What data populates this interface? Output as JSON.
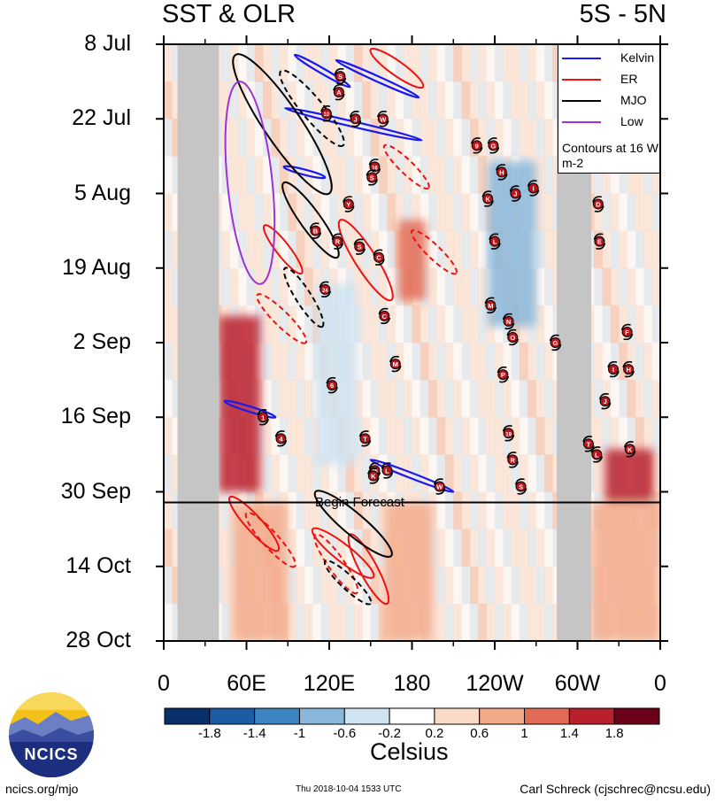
{
  "header": {
    "title_left": "SST & OLR",
    "title_right": "5S - 5N"
  },
  "colorbar": {
    "tick_labels": [
      "-1.8",
      "-1.4",
      "-1",
      "-0.6",
      "-0.2",
      "0.2",
      "0.6",
      "1",
      "1.4",
      "1.8"
    ],
    "unit": "Celsius",
    "colors": [
      "#08306b",
      "#1c5ba6",
      "#3d84c3",
      "#89b7da",
      "#cfe3f1",
      "#ffffff",
      "#fbdac8",
      "#f3aa89",
      "#e26b55",
      "#b8202e",
      "#6b0019"
    ]
  },
  "legend": {
    "items": [
      {
        "label": "Kelvin",
        "color": "#1a1aee"
      },
      {
        "label": "ER",
        "color": "#ee1111"
      },
      {
        "label": "MJO",
        "color": "#000000"
      },
      {
        "label": "Low",
        "color": "#a030d8"
      }
    ],
    "note": "Contours at 16 W m-2"
  },
  "forecast_label": "Begin Forecast",
  "footer": {
    "url": "ncics.org/mjo",
    "timestamp": "Thu 2018-10-04 1533 UTC",
    "author": "Carl Schreck (cjschrec@ncsu.edu)",
    "logo_text": "NCICS"
  },
  "chart_data": {
    "type": "heatmap",
    "title": "SST & OLR",
    "subtitle": "5S - 5N",
    "xlabel": "",
    "ylabel": "",
    "x_ticks": [
      "0",
      "60E",
      "120E",
      "180",
      "120W",
      "60W",
      "0"
    ],
    "x_tick_values": [
      0,
      60,
      120,
      180,
      240,
      300,
      360
    ],
    "y_ticks": [
      "8 Jul",
      "22 Jul",
      "5 Aug",
      "19 Aug",
      "2 Sep",
      "16 Sep",
      "30 Sep",
      "14 Oct",
      "28 Oct"
    ],
    "y_tick_values": [
      "2018-07-08",
      "2018-07-22",
      "2018-08-05",
      "2018-08-19",
      "2018-09-02",
      "2018-09-16",
      "2018-09-30",
      "2018-10-14",
      "2018-10-28"
    ],
    "xlim": [
      0,
      360
    ],
    "ylim": [
      "2018-07-08",
      "2018-10-28"
    ],
    "forecast_start": "2018-10-02",
    "land_gaps": [
      {
        "lon": [
          10,
          40
        ]
      },
      {
        "lon": [
          285,
          310
        ]
      }
    ],
    "anomaly_patches": [
      {
        "lon": [
          40,
          70
        ],
        "date": [
          "2018-08-28",
          "2018-09-30"
        ],
        "value": 1.6
      },
      {
        "lon": [
          50,
          90
        ],
        "date": [
          "2018-10-02",
          "2018-10-28"
        ],
        "value": 0.8
      },
      {
        "lon": [
          160,
          195
        ],
        "date": [
          "2018-10-02",
          "2018-10-28"
        ],
        "value": 1.0
      },
      {
        "lon": [
          170,
          190
        ],
        "date": [
          "2018-08-10",
          "2018-08-25"
        ],
        "value": 1.2
      },
      {
        "lon": [
          320,
          355
        ],
        "date": [
          "2018-09-22",
          "2018-10-02"
        ],
        "value": 1.6
      },
      {
        "lon": [
          310,
          360
        ],
        "date": [
          "2018-10-02",
          "2018-10-28"
        ],
        "value": 0.8
      },
      {
        "lon": [
          235,
          270
        ],
        "date": [
          "2018-07-30",
          "2018-08-30"
        ],
        "value": -0.8
      },
      {
        "lon": [
          110,
          140
        ],
        "date": [
          "2018-08-22",
          "2018-09-25"
        ],
        "value": -0.4
      }
    ],
    "storms": [
      {
        "label": "S",
        "lon": 128,
        "date": "2018-07-14"
      },
      {
        "label": "A",
        "lon": 127,
        "date": "2018-07-17"
      },
      {
        "label": "10",
        "lon": 118,
        "date": "2018-07-21"
      },
      {
        "label": "J",
        "lon": 139,
        "date": "2018-07-22"
      },
      {
        "label": "W",
        "lon": 159,
        "date": "2018-07-22"
      },
      {
        "label": "9",
        "lon": 227,
        "date": "2018-07-27"
      },
      {
        "label": "G",
        "lon": 239,
        "date": "2018-07-27"
      },
      {
        "label": "16",
        "lon": 153,
        "date": "2018-07-31"
      },
      {
        "label": "S",
        "lon": 151,
        "date": "2018-08-02"
      },
      {
        "label": "H",
        "lon": 245,
        "date": "2018-08-01"
      },
      {
        "label": "Y",
        "lon": 134,
        "date": "2018-08-07"
      },
      {
        "label": "K",
        "lon": 235,
        "date": "2018-08-06"
      },
      {
        "label": "J",
        "lon": 255,
        "date": "2018-08-05"
      },
      {
        "label": "I",
        "lon": 268,
        "date": "2018-08-04"
      },
      {
        "label": "D",
        "lon": 315,
        "date": "2018-08-07"
      },
      {
        "label": "B",
        "lon": 110,
        "date": "2018-08-12"
      },
      {
        "label": "R",
        "lon": 126,
        "date": "2018-08-14"
      },
      {
        "label": "S",
        "lon": 142,
        "date": "2018-08-15"
      },
      {
        "label": "L",
        "lon": 240,
        "date": "2018-08-14"
      },
      {
        "label": "E",
        "lon": 316,
        "date": "2018-08-14"
      },
      {
        "label": "C",
        "lon": 156,
        "date": "2018-08-17"
      },
      {
        "label": "24",
        "lon": 117,
        "date": "2018-08-23"
      },
      {
        "label": "M",
        "lon": 237,
        "date": "2018-08-26"
      },
      {
        "label": "C",
        "lon": 160,
        "date": "2018-08-28"
      },
      {
        "label": "N",
        "lon": 250,
        "date": "2018-08-29"
      },
      {
        "label": "F",
        "lon": 336,
        "date": "2018-08-31"
      },
      {
        "label": "O",
        "lon": 253,
        "date": "2018-09-01"
      },
      {
        "label": "G",
        "lon": 284,
        "date": "2018-09-02"
      },
      {
        "label": "M",
        "lon": 168,
        "date": "2018-09-06"
      },
      {
        "label": "I",
        "lon": 326,
        "date": "2018-09-07"
      },
      {
        "label": "H",
        "lon": 337,
        "date": "2018-09-07"
      },
      {
        "label": "P",
        "lon": 246,
        "date": "2018-09-08"
      },
      {
        "label": "6",
        "lon": 122,
        "date": "2018-09-10"
      },
      {
        "label": "J",
        "lon": 320,
        "date": "2018-09-13"
      },
      {
        "label": "1",
        "lon": 72,
        "date": "2018-09-16"
      },
      {
        "label": "4",
        "lon": 85,
        "date": "2018-09-20"
      },
      {
        "label": "T",
        "lon": 146,
        "date": "2018-09-20"
      },
      {
        "label": "19",
        "lon": 250,
        "date": "2018-09-19"
      },
      {
        "label": "T",
        "lon": 308,
        "date": "2018-09-21"
      },
      {
        "label": "L",
        "lon": 314,
        "date": "2018-09-23"
      },
      {
        "label": "K",
        "lon": 338,
        "date": "2018-09-22"
      },
      {
        "label": "R",
        "lon": 253,
        "date": "2018-09-24"
      },
      {
        "label": "25",
        "lon": 153,
        "date": "2018-09-26"
      },
      {
        "label": "L",
        "lon": 162,
        "date": "2018-09-26"
      },
      {
        "label": "K",
        "lon": 152,
        "date": "2018-09-27"
      },
      {
        "label": "S",
        "lon": 259,
        "date": "2018-09-29"
      },
      {
        "label": "W",
        "lon": 200,
        "date": "2018-09-29"
      }
    ],
    "contours": {
      "kelvin": [
        {
          "lon": [
            95,
            135
          ],
          "date": [
            "2018-07-10",
            "2018-07-16"
          ]
        },
        {
          "lon": [
            125,
            185
          ],
          "date": [
            "2018-07-11",
            "2018-07-18"
          ]
        },
        {
          "lon": [
            88,
            187
          ],
          "date": [
            "2018-07-20",
            "2018-07-26"
          ]
        },
        {
          "lon": [
            87,
            117
          ],
          "date": [
            "2018-07-31",
            "2018-08-02"
          ]
        },
        {
          "lon": [
            44,
            81
          ],
          "date": [
            "2018-09-13",
            "2018-09-16"
          ]
        },
        {
          "lon": [
            150,
            210
          ],
          "date": [
            "2018-09-24",
            "2018-09-30"
          ]
        }
      ],
      "er": [
        {
          "lon": [
            150,
            188
          ],
          "date": [
            "2018-07-09",
            "2018-07-16"
          ]
        },
        {
          "lon": [
            160,
            192
          ],
          "date": [
            "2018-07-27",
            "2018-08-04"
          ]
        },
        {
          "lon": [
            128,
            165
          ],
          "date": [
            "2018-08-10",
            "2018-08-25"
          ]
        },
        {
          "lon": [
            180,
            212
          ],
          "date": [
            "2018-08-12",
            "2018-08-20"
          ]
        },
        {
          "lon": [
            73,
            100
          ],
          "date": [
            "2018-08-11",
            "2018-08-20"
          ]
        },
        {
          "lon": [
            68,
            103
          ],
          "date": [
            "2018-08-24",
            "2018-09-02"
          ]
        },
        {
          "lon": [
            48,
            83
          ],
          "date": [
            "2018-10-01",
            "2018-10-11"
          ]
        },
        {
          "lon": [
            60,
            95
          ],
          "date": [
            "2018-10-04",
            "2018-10-14"
          ]
        },
        {
          "lon": [
            108,
            152
          ],
          "date": [
            "2018-10-07",
            "2018-10-16"
          ]
        },
        {
          "lon": [
            110,
            140
          ],
          "date": [
            "2018-10-08",
            "2018-10-19"
          ]
        },
        {
          "lon": [
            135,
            162
          ],
          "date": [
            "2018-10-08",
            "2018-10-21"
          ]
        }
      ],
      "mjo": [
        {
          "lon": [
            52,
            120
          ],
          "date": [
            "2018-07-10",
            "2018-08-05"
          ]
        },
        {
          "lon": [
            88,
            115
          ],
          "date": [
            "2018-08-19",
            "2018-08-30"
          ]
        },
        {
          "lon": [
            110,
            165
          ],
          "date": [
            "2018-09-30",
            "2018-10-12"
          ]
        },
        {
          "lon": [
            117,
            150
          ],
          "date": [
            "2018-10-13",
            "2018-10-21"
          ]
        },
        {
          "lon": [
            87,
            126
          ],
          "date": [
            "2018-08-03",
            "2018-08-17"
          ]
        },
        {
          "lon": [
            85,
            130
          ],
          "date": [
            "2018-07-13",
            "2018-07-27"
          ]
        }
      ],
      "low": [
        {
          "lon": [
            55,
            70
          ],
          "date": [
            "2018-07-15",
            "2018-08-22"
          ]
        }
      ]
    }
  }
}
